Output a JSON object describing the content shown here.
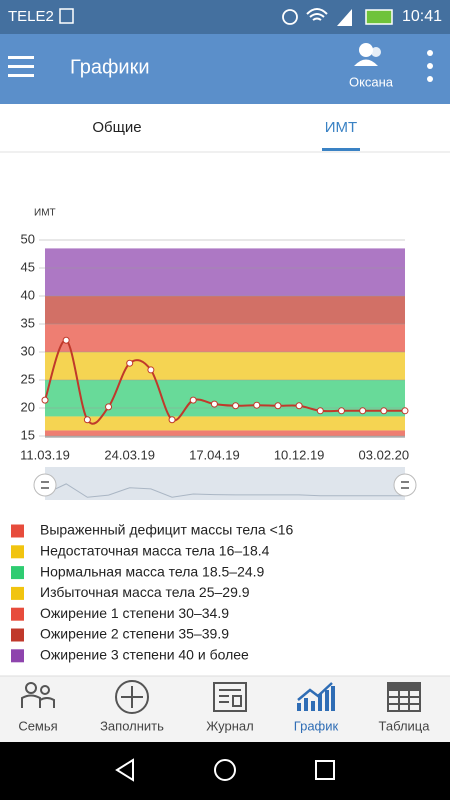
{
  "status_bar": {
    "carrier": "TELE2",
    "time": "10:41"
  },
  "app_bar": {
    "title": "Графики",
    "user": "Оксана"
  },
  "tabs": [
    "Общие",
    "ИМТ"
  ],
  "chart_data": {
    "type": "line",
    "y_label": "ИМТ",
    "categories": [
      "11.03.19",
      null,
      null,
      null,
      "24.03.19",
      null,
      null,
      null,
      "17.04.19",
      null,
      null,
      null,
      "10.12.19",
      null,
      null,
      null,
      "03.02.20",
      null
    ],
    "values": [
      21.4,
      32.1,
      17.9,
      20.2,
      28.0,
      26.8,
      17.9,
      21.4,
      20.7,
      20.4,
      20.5,
      20.4,
      20.4,
      19.5,
      19.5,
      19.5,
      19.5,
      19.5
    ],
    "color": "#c0392b",
    "ylim": [
      15,
      50
    ],
    "yticks": [
      15,
      20,
      25,
      30,
      35,
      40,
      45,
      50
    ],
    "grid": true,
    "zones": [
      {
        "name": "Выраженный дефицит массы тела <16",
        "color": "#e74c3c",
        "range": [
          15,
          16
        ]
      },
      {
        "name": "Недостаточная масса тела 16–18.4",
        "color": "#f1c40f",
        "range": [
          16,
          18.5
        ]
      },
      {
        "name": "Нормальная масса тела 18.5–24.9",
        "color": "#2ecc71",
        "range": [
          18.5,
          25
        ]
      },
      {
        "name": "Избыточная масса тела 25–29.9",
        "color": "#f1c40f",
        "range": [
          25,
          30
        ]
      },
      {
        "name": "Ожирение 1 степени 30–34.9",
        "color": "#e74c3c",
        "range": [
          30,
          35
        ]
      },
      {
        "name": "Ожирение 2 степени 35–39.9",
        "color": "#c0392b",
        "range": [
          35,
          40
        ]
      },
      {
        "name": "Ожирение 3 степени 40 и более",
        "color": "#8e44ad",
        "range": [
          40,
          48.5
        ]
      }
    ]
  },
  "bottom_nav": [
    "Семья",
    "Заполнить",
    "Журнал",
    "График",
    "Таблица"
  ]
}
